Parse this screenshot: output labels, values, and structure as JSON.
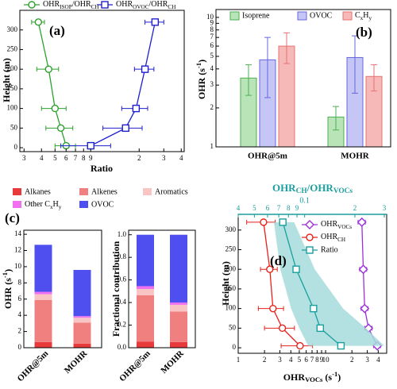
{
  "chart_data": [
    {
      "type": "line",
      "label": "(a)",
      "xlabel": "Ratio",
      "ylabel": "Height (m)",
      "xscale": "log",
      "xlim": [
        0.28,
        4.2
      ],
      "xticks": [
        {
          "value": 0.3,
          "label": "3"
        },
        {
          "value": 0.4,
          "label": "4"
        },
        {
          "value": 0.5,
          "label": "5"
        },
        {
          "value": 0.6,
          "label": "6"
        },
        {
          "value": 0.7,
          "label": "7"
        },
        {
          "value": 0.8,
          "label": "8"
        },
        {
          "value": 0.9,
          "label": "9"
        },
        {
          "value": 2,
          "label": "2"
        },
        {
          "value": 3,
          "label": "3"
        },
        {
          "value": 4,
          "label": "4"
        }
      ],
      "ylim": [
        -10,
        350
      ],
      "yticks": [
        0,
        50,
        100,
        150,
        200,
        250,
        300
      ],
      "series": [
        {
          "name": [
            "OHR",
            "ISOP",
            "/OHR",
            "CH"
          ],
          "color": "#2ca02c",
          "marker": "circle",
          "x": [
            0.38,
            0.45,
            0.5,
            0.55,
            0.6
          ],
          "xerr": [
            0.04,
            0.08,
            0.1,
            0.12,
            0.1
          ],
          "y": [
            320,
            200,
            100,
            50,
            5
          ]
        },
        {
          "name": [
            "OHR",
            "OVOC",
            "/OHR",
            "CH"
          ],
          "color": "#1f1fd0",
          "marker": "square",
          "x": [
            2.6,
            2.2,
            1.9,
            1.6,
            0.9
          ],
          "xerr": [
            0.4,
            0.35,
            0.4,
            0.5,
            0.35
          ],
          "y": [
            320,
            200,
            100,
            50,
            5
          ]
        }
      ]
    },
    {
      "type": "bar",
      "label": "(b)",
      "ylabel": [
        "OHR (s",
        "-1",
        ")"
      ],
      "yscale": "log",
      "ylim": [
        1,
        11.5
      ],
      "yticks": [
        1,
        2,
        3,
        4,
        5,
        6,
        7,
        8,
        9,
        10
      ],
      "categories": [
        "OHR@5m",
        "MOHR"
      ],
      "series": [
        {
          "name": "Isoprene",
          "color": "#b8e4b8",
          "edgecolor": "#4caf50",
          "values": [
            3.4,
            1.7
          ],
          "errors": [
            0.9,
            0.35
          ]
        },
        {
          "name": "OVOC",
          "color": "#c6c6f6",
          "edgecolor": "#6666e0",
          "values": [
            4.7,
            4.9
          ],
          "errors": [
            2.3,
            2.3
          ]
        },
        {
          "name": [
            "C",
            "x",
            "H",
            "y"
          ],
          "color": "#f7b8b8",
          "edgecolor": "#e57373",
          "values": [
            6.0,
            3.5
          ],
          "errors": [
            1.6,
            0.8
          ]
        }
      ]
    },
    {
      "type": "stacked_bar",
      "label": "(c)",
      "ylabel": [
        "OHR (s",
        "-1",
        ")"
      ],
      "ylim": [
        0,
        14.5
      ],
      "yticks": [
        0,
        2,
        4,
        6,
        8,
        10,
        12,
        14
      ],
      "categories": [
        "OHR@5m",
        "MOHR"
      ],
      "series": [
        {
          "name": "Alkanes",
          "color": "#e83a3a",
          "values": [
            0.7,
            0.5
          ]
        },
        {
          "name": "Alkenes",
          "color": "#f08080",
          "values": [
            5.2,
            2.6
          ]
        },
        {
          "name": "Aromatics",
          "color": "#f8c4c4",
          "values": [
            0.7,
            0.6
          ]
        },
        {
          "name": [
            "Other C",
            "x",
            "H",
            "y"
          ],
          "color": "#f070f0",
          "values": [
            0.3,
            0.2
          ]
        },
        {
          "name": "OVOC",
          "color": "#4f4ff0",
          "values": [
            5.8,
            5.7
          ]
        }
      ]
    },
    {
      "type": "stacked_bar",
      "ylabel": "Fractional contribution",
      "ylim": [
        0,
        1.04
      ],
      "yticks": [
        {
          "value": 0,
          "label": "0.0"
        },
        {
          "value": 0.2,
          "label": "0.2"
        },
        {
          "value": 0.4,
          "label": "0.4"
        },
        {
          "value": 0.6,
          "label": "0.6"
        },
        {
          "value": 0.8,
          "label": "0.8"
        },
        {
          "value": 1,
          "label": "1.0"
        }
      ],
      "categories": [
        "OHR@5m",
        "MOHR"
      ],
      "series": [
        {
          "color": "#e83a3a",
          "values": [
            0.055,
            0.05
          ]
        },
        {
          "color": "#f08080",
          "values": [
            0.41,
            0.27
          ]
        },
        {
          "color": "#f8c4c4",
          "values": [
            0.055,
            0.06
          ]
        },
        {
          "color": "#f070f0",
          "values": [
            0.025,
            0.02
          ]
        },
        {
          "color": "#4f4ff0",
          "values": [
            0.455,
            0.6
          ]
        }
      ]
    },
    {
      "type": "line",
      "label": "(d)",
      "xlabel": [
        "OHR",
        "VOCs",
        " (s",
        "-1",
        ")"
      ],
      "ylabel": "Height (m)",
      "xscale": "log",
      "xlim": [
        1,
        50
      ],
      "xticks": [
        1,
        2,
        3,
        4,
        5,
        6,
        7,
        8,
        9,
        10,
        {
          "value": 20,
          "label": "2"
        },
        {
          "value": 30,
          "label": "3"
        },
        {
          "value": 40,
          "label": "4"
        }
      ],
      "x2label": [
        "OHR",
        "CH",
        "/OHR",
        "VOCs"
      ],
      "x2lim": [
        0.04,
        0.31
      ],
      "x2ticks": [
        {
          "value": 0.04,
          "label": "4"
        },
        {
          "value": 0.05,
          "label": "5"
        },
        {
          "value": 0.06,
          "label": "6"
        },
        {
          "value": 0.07,
          "label": "7"
        },
        {
          "value": 0.08,
          "label": "8"
        },
        {
          "value": 0.09,
          "label": "9"
        },
        0.1,
        {
          "value": 0.2,
          "label": "2"
        },
        {
          "value": 0.3,
          "label": "3"
        }
      ],
      "ylim": [
        -14,
        340
      ],
      "yticks": [
        0,
        50,
        100,
        150,
        200,
        250,
        300
      ],
      "series": [
        {
          "name": [
            "OHR",
            "VOCs"
          ],
          "color": "#9b30d9",
          "marker": "diamond",
          "x": [
            26,
            27,
            28,
            31,
            39
          ],
          "xerr": [
            2.5,
            2.5,
            2.5,
            3,
            3.5
          ],
          "y": [
            320,
            200,
            100,
            50,
            5
          ]
        },
        {
          "name": [
            "OHR",
            "CH"
          ],
          "color": "#e8201a",
          "marker": "circle",
          "x": [
            1.95,
            2.3,
            2.5,
            3.2,
            5.1
          ],
          "xerr": [
            0.7,
            0.5,
            0.8,
            1.2,
            2.0
          ],
          "y": [
            320,
            200,
            100,
            50,
            5
          ]
        },
        {
          "name": "Ratio",
          "color": "#1a9e9e",
          "marker": "square",
          "axis": "x2",
          "x": [
            0.074,
            0.089,
            0.113,
            0.124,
            0.165
          ],
          "band_low": [
            0.0655,
            0.0715,
            0.083,
            0.093,
            0.105
          ],
          "band_high": [
            0.0865,
            0.115,
            0.17,
            0.232,
            0.3
          ],
          "band_color": "#a6dcdc",
          "y": [
            320,
            200,
            100,
            50,
            5
          ]
        }
      ]
    }
  ]
}
